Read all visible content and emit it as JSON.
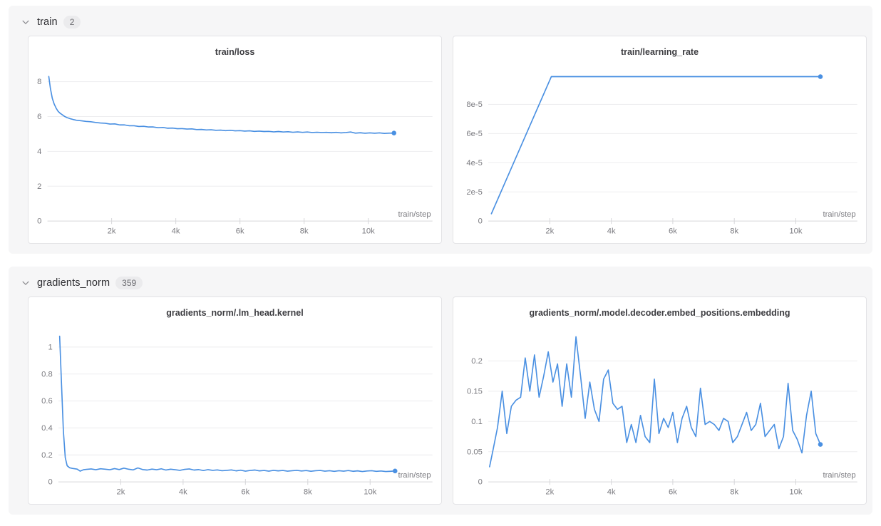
{
  "colors": {
    "line": "#4a90e2",
    "grid": "#ededef",
    "axis": "#d7d7da",
    "tick_text": "#7b7b80",
    "axis_label_text": "#7b7b80",
    "title_text": "#3c3c40",
    "section_bg": "#f6f6f7",
    "panel_bg": "#ffffff",
    "panel_border": "#e3e3e6",
    "badge_bg": "#ebebed",
    "badge_text": "#6b6b70"
  },
  "sections": [
    {
      "title": "train",
      "count": "2",
      "chart_indexes": [
        0,
        1
      ]
    },
    {
      "title": "gradients_norm",
      "count": "359",
      "chart_indexes": [
        2,
        3
      ]
    }
  ],
  "chart_data": [
    {
      "type": "line",
      "title": "train/loss",
      "xlabel": "train/step",
      "legend": null,
      "grid": true,
      "xlim": [
        0,
        12000
      ],
      "ylim": [
        0,
        8.75
      ],
      "x_ticks": [
        {
          "v": 2000,
          "label": "2k"
        },
        {
          "v": 4000,
          "label": "4k"
        },
        {
          "v": 6000,
          "label": "6k"
        },
        {
          "v": 8000,
          "label": "8k"
        },
        {
          "v": 10000,
          "label": "10k"
        }
      ],
      "y_ticks": [
        {
          "v": 0,
          "label": "0"
        },
        {
          "v": 2,
          "label": "2"
        },
        {
          "v": 4,
          "label": "4"
        },
        {
          "v": 6,
          "label": "6"
        },
        {
          "v": 8,
          "label": "8"
        }
      ],
      "end_marker": true,
      "points": [
        [
          40,
          8.3
        ],
        [
          90,
          7.62
        ],
        [
          150,
          7.05
        ],
        [
          210,
          6.72
        ],
        [
          270,
          6.48
        ],
        [
          330,
          6.3
        ],
        [
          400,
          6.18
        ],
        [
          470,
          6.09
        ],
        [
          540,
          6.0
        ],
        [
          610,
          5.94
        ],
        [
          700,
          5.88
        ],
        [
          800,
          5.83
        ],
        [
          900,
          5.79
        ],
        [
          1050,
          5.76
        ],
        [
          1200,
          5.72
        ],
        [
          1350,
          5.7
        ],
        [
          1500,
          5.66
        ],
        [
          1650,
          5.63
        ],
        [
          1800,
          5.61
        ],
        [
          1950,
          5.57
        ],
        [
          2100,
          5.58
        ],
        [
          2250,
          5.52
        ],
        [
          2400,
          5.52
        ],
        [
          2550,
          5.47
        ],
        [
          2700,
          5.47
        ],
        [
          2850,
          5.43
        ],
        [
          3000,
          5.44
        ],
        [
          3150,
          5.4
        ],
        [
          3300,
          5.4
        ],
        [
          3450,
          5.36
        ],
        [
          3600,
          5.37
        ],
        [
          3750,
          5.33
        ],
        [
          3900,
          5.34
        ],
        [
          4050,
          5.3
        ],
        [
          4200,
          5.31
        ],
        [
          4350,
          5.28
        ],
        [
          4500,
          5.29
        ],
        [
          4650,
          5.25
        ],
        [
          4800,
          5.26
        ],
        [
          4950,
          5.23
        ],
        [
          5100,
          5.24
        ],
        [
          5250,
          5.21
        ],
        [
          5400,
          5.22
        ],
        [
          5550,
          5.19
        ],
        [
          5700,
          5.21
        ],
        [
          5850,
          5.18
        ],
        [
          6000,
          5.19
        ],
        [
          6150,
          5.16
        ],
        [
          6300,
          5.18
        ],
        [
          6450,
          5.15
        ],
        [
          6600,
          5.16
        ],
        [
          6750,
          5.14
        ],
        [
          6900,
          5.15
        ],
        [
          7050,
          5.12
        ],
        [
          7200,
          5.14
        ],
        [
          7350,
          5.11
        ],
        [
          7500,
          5.13
        ],
        [
          7650,
          5.1
        ],
        [
          7800,
          5.12
        ],
        [
          7950,
          5.09
        ],
        [
          8100,
          5.11
        ],
        [
          8250,
          5.08
        ],
        [
          8400,
          5.1
        ],
        [
          8550,
          5.08
        ],
        [
          8700,
          5.09
        ],
        [
          8850,
          5.07
        ],
        [
          9000,
          5.09
        ],
        [
          9150,
          5.06
        ],
        [
          9300,
          5.08
        ],
        [
          9450,
          5.11
        ],
        [
          9600,
          5.05
        ],
        [
          9750,
          5.07
        ],
        [
          9900,
          5.04
        ],
        [
          10050,
          5.06
        ],
        [
          10200,
          5.04
        ],
        [
          10350,
          5.06
        ],
        [
          10500,
          5.03
        ],
        [
          10650,
          5.05
        ],
        [
          10800,
          5.05
        ]
      ]
    },
    {
      "type": "line",
      "title": "train/learning_rate",
      "xlabel": "train/step",
      "legend": null,
      "grid": true,
      "xlim": [
        0,
        12000
      ],
      "ylim": [
        0,
        0.0001045
      ],
      "x_ticks": [
        {
          "v": 2000,
          "label": "2k"
        },
        {
          "v": 4000,
          "label": "4k"
        },
        {
          "v": 6000,
          "label": "6k"
        },
        {
          "v": 8000,
          "label": "8k"
        },
        {
          "v": 10000,
          "label": "10k"
        }
      ],
      "y_ticks": [
        {
          "v": 0,
          "label": "0"
        },
        {
          "v": 2e-05,
          "label": "2e-5"
        },
        {
          "v": 4e-05,
          "label": "4e-5"
        },
        {
          "v": 6e-05,
          "label": "6e-5"
        },
        {
          "v": 8e-05,
          "label": "8e-5"
        }
      ],
      "end_marker": true,
      "points": [
        [
          100,
          5e-06
        ],
        [
          2050,
          9.9e-05
        ],
        [
          10800,
          9.9e-05
        ]
      ]
    },
    {
      "type": "line",
      "title": "gradients_norm/.lm_head.kernel",
      "xlabel": "train/step",
      "legend": null,
      "grid": true,
      "xlim": [
        0,
        12000
      ],
      "ylim": [
        0,
        1.13
      ],
      "x_ticks": [
        {
          "v": 2000,
          "label": "2k"
        },
        {
          "v": 4000,
          "label": "4k"
        },
        {
          "v": 6000,
          "label": "6k"
        },
        {
          "v": 8000,
          "label": "8k"
        },
        {
          "v": 10000,
          "label": "10k"
        }
      ],
      "y_ticks": [
        {
          "v": 0,
          "label": "0"
        },
        {
          "v": 0.2,
          "label": "0.2"
        },
        {
          "v": 0.4,
          "label": "0.4"
        },
        {
          "v": 0.6,
          "label": "0.6"
        },
        {
          "v": 0.8,
          "label": "0.8"
        },
        {
          "v": 1,
          "label": "1"
        }
      ],
      "end_marker": true,
      "points": [
        [
          40,
          1.08
        ],
        [
          100,
          0.72
        ],
        [
          160,
          0.38
        ],
        [
          220,
          0.18
        ],
        [
          280,
          0.12
        ],
        [
          360,
          0.105
        ],
        [
          450,
          0.1
        ],
        [
          600,
          0.095
        ],
        [
          700,
          0.08
        ],
        [
          800,
          0.09
        ],
        [
          900,
          0.093
        ],
        [
          1050,
          0.096
        ],
        [
          1200,
          0.09
        ],
        [
          1350,
          0.098
        ],
        [
          1500,
          0.094
        ],
        [
          1650,
          0.09
        ],
        [
          1800,
          0.099
        ],
        [
          1950,
          0.092
        ],
        [
          2100,
          0.102
        ],
        [
          2250,
          0.094
        ],
        [
          2400,
          0.089
        ],
        [
          2550,
          0.104
        ],
        [
          2700,
          0.092
        ],
        [
          2850,
          0.088
        ],
        [
          3000,
          0.095
        ],
        [
          3150,
          0.09
        ],
        [
          3300,
          0.097
        ],
        [
          3450,
          0.088
        ],
        [
          3600,
          0.094
        ],
        [
          3750,
          0.09
        ],
        [
          3900,
          0.086
        ],
        [
          4050,
          0.093
        ],
        [
          4200,
          0.096
        ],
        [
          4350,
          0.088
        ],
        [
          4500,
          0.091
        ],
        [
          4650,
          0.084
        ],
        [
          4800,
          0.091
        ],
        [
          4950,
          0.086
        ],
        [
          5100,
          0.089
        ],
        [
          5250,
          0.083
        ],
        [
          5400,
          0.086
        ],
        [
          5550,
          0.089
        ],
        [
          5700,
          0.082
        ],
        [
          5850,
          0.087
        ],
        [
          6000,
          0.08
        ],
        [
          6150,
          0.085
        ],
        [
          6300,
          0.088
        ],
        [
          6450,
          0.082
        ],
        [
          6600,
          0.085
        ],
        [
          6750,
          0.08
        ],
        [
          6900,
          0.086
        ],
        [
          7050,
          0.082
        ],
        [
          7200,
          0.085
        ],
        [
          7350,
          0.08
        ],
        [
          7500,
          0.083
        ],
        [
          7650,
          0.086
        ],
        [
          7800,
          0.081
        ],
        [
          7950,
          0.084
        ],
        [
          8100,
          0.079
        ],
        [
          8250,
          0.083
        ],
        [
          8400,
          0.085
        ],
        [
          8550,
          0.08
        ],
        [
          8700,
          0.083
        ],
        [
          8850,
          0.078
        ],
        [
          9000,
          0.083
        ],
        [
          9150,
          0.08
        ],
        [
          9300,
          0.084
        ],
        [
          9450,
          0.079
        ],
        [
          9600,
          0.082
        ],
        [
          9750,
          0.077
        ],
        [
          9900,
          0.081
        ],
        [
          10050,
          0.083
        ],
        [
          10200,
          0.078
        ],
        [
          10350,
          0.081
        ],
        [
          10500,
          0.077
        ],
        [
          10650,
          0.079
        ],
        [
          10800,
          0.081
        ]
      ]
    },
    {
      "type": "line",
      "title": "gradients_norm/.model.decoder.embed_positions.embedding",
      "xlabel": "train/step",
      "legend": null,
      "grid": true,
      "xlim": [
        0,
        12000
      ],
      "ylim": [
        0,
        0.252
      ],
      "x_ticks": [
        {
          "v": 2000,
          "label": "2k"
        },
        {
          "v": 4000,
          "label": "4k"
        },
        {
          "v": 6000,
          "label": "6k"
        },
        {
          "v": 8000,
          "label": "8k"
        },
        {
          "v": 10000,
          "label": "10k"
        }
      ],
      "y_ticks": [
        {
          "v": 0,
          "label": "0"
        },
        {
          "v": 0.05,
          "label": "0.05"
        },
        {
          "v": 0.1,
          "label": "0.1"
        },
        {
          "v": 0.15,
          "label": "0.15"
        },
        {
          "v": 0.2,
          "label": "0.2"
        }
      ],
      "end_marker": true,
      "points": [
        [
          40,
          0.025
        ],
        [
          150,
          0.052
        ],
        [
          300,
          0.09
        ],
        [
          450,
          0.15
        ],
        [
          600,
          0.08
        ],
        [
          750,
          0.125
        ],
        [
          900,
          0.135
        ],
        [
          1050,
          0.14
        ],
        [
          1200,
          0.205
        ],
        [
          1350,
          0.15
        ],
        [
          1500,
          0.21
        ],
        [
          1650,
          0.14
        ],
        [
          1800,
          0.175
        ],
        [
          1950,
          0.215
        ],
        [
          2100,
          0.165
        ],
        [
          2250,
          0.195
        ],
        [
          2400,
          0.125
        ],
        [
          2550,
          0.195
        ],
        [
          2700,
          0.14
        ],
        [
          2850,
          0.24
        ],
        [
          3000,
          0.175
        ],
        [
          3150,
          0.105
        ],
        [
          3300,
          0.165
        ],
        [
          3450,
          0.12
        ],
        [
          3600,
          0.1
        ],
        [
          3750,
          0.17
        ],
        [
          3900,
          0.185
        ],
        [
          4050,
          0.13
        ],
        [
          4200,
          0.12
        ],
        [
          4350,
          0.125
        ],
        [
          4500,
          0.065
        ],
        [
          4650,
          0.095
        ],
        [
          4800,
          0.065
        ],
        [
          4950,
          0.11
        ],
        [
          5100,
          0.075
        ],
        [
          5250,
          0.065
        ],
        [
          5400,
          0.17
        ],
        [
          5550,
          0.08
        ],
        [
          5700,
          0.105
        ],
        [
          5850,
          0.09
        ],
        [
          6000,
          0.115
        ],
        [
          6150,
          0.065
        ],
        [
          6300,
          0.105
        ],
        [
          6450,
          0.125
        ],
        [
          6600,
          0.09
        ],
        [
          6750,
          0.075
        ],
        [
          6900,
          0.155
        ],
        [
          7050,
          0.095
        ],
        [
          7200,
          0.1
        ],
        [
          7350,
          0.095
        ],
        [
          7500,
          0.085
        ],
        [
          7650,
          0.105
        ],
        [
          7800,
          0.1
        ],
        [
          7950,
          0.065
        ],
        [
          8100,
          0.075
        ],
        [
          8250,
          0.095
        ],
        [
          8400,
          0.115
        ],
        [
          8550,
          0.085
        ],
        [
          8700,
          0.095
        ],
        [
          8850,
          0.13
        ],
        [
          9000,
          0.075
        ],
        [
          9150,
          0.085
        ],
        [
          9300,
          0.095
        ],
        [
          9450,
          0.055
        ],
        [
          9600,
          0.075
        ],
        [
          9750,
          0.163
        ],
        [
          9900,
          0.085
        ],
        [
          10050,
          0.07
        ],
        [
          10200,
          0.048
        ],
        [
          10350,
          0.11
        ],
        [
          10500,
          0.15
        ],
        [
          10650,
          0.08
        ],
        [
          10800,
          0.062
        ]
      ]
    }
  ]
}
